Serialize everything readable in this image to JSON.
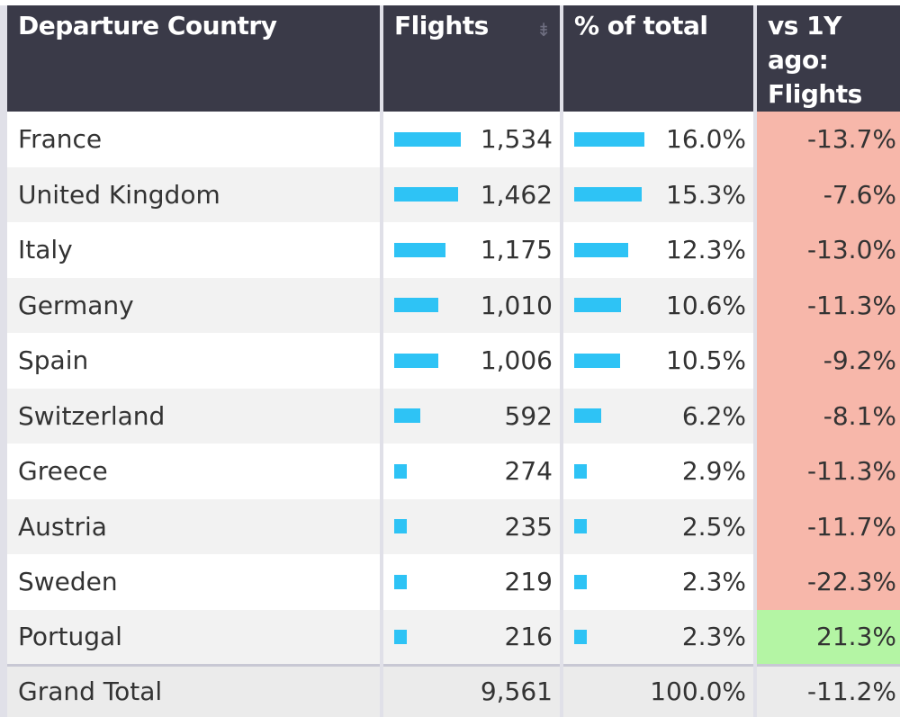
{
  "table": {
    "headers": {
      "country": "Departure Country",
      "flights": "Flights",
      "pct": "% of total",
      "yoy": "vs 1Y ago: Flights"
    },
    "sort_icon": "sort-descending-icon",
    "max_flights": 1534,
    "max_pct": 16.0,
    "colors": {
      "header_bg": "#3a3a48",
      "bar": "#2ec3f5",
      "negative_bg": "#f7b7aa",
      "positive_bg": "#b4f5a4"
    },
    "rows": [
      {
        "country": "France",
        "flights": "1,534",
        "flights_value": 1534,
        "pct": "16.0%",
        "pct_value": 16.0,
        "yoy": "-13.7%",
        "yoy_value": -13.7
      },
      {
        "country": "United Kingdom",
        "flights": "1,462",
        "flights_value": 1462,
        "pct": "15.3%",
        "pct_value": 15.3,
        "yoy": "-7.6%",
        "yoy_value": -7.6
      },
      {
        "country": "Italy",
        "flights": "1,175",
        "flights_value": 1175,
        "pct": "12.3%",
        "pct_value": 12.3,
        "yoy": "-13.0%",
        "yoy_value": -13.0
      },
      {
        "country": "Germany",
        "flights": "1,010",
        "flights_value": 1010,
        "pct": "10.6%",
        "pct_value": 10.6,
        "yoy": "-11.3%",
        "yoy_value": -11.3
      },
      {
        "country": "Spain",
        "flights": "1,006",
        "flights_value": 1006,
        "pct": "10.5%",
        "pct_value": 10.5,
        "yoy": "-9.2%",
        "yoy_value": -9.2
      },
      {
        "country": "Switzerland",
        "flights": "592",
        "flights_value": 592,
        "pct": "6.2%",
        "pct_value": 6.2,
        "yoy": "-8.1%",
        "yoy_value": -8.1
      },
      {
        "country": "Greece",
        "flights": "274",
        "flights_value": 274,
        "pct": "2.9%",
        "pct_value": 2.9,
        "yoy": "-11.3%",
        "yoy_value": -11.3
      },
      {
        "country": "Austria",
        "flights": "235",
        "flights_value": 235,
        "pct": "2.5%",
        "pct_value": 2.5,
        "yoy": "-11.7%",
        "yoy_value": -11.7
      },
      {
        "country": "Sweden",
        "flights": "219",
        "flights_value": 219,
        "pct": "2.3%",
        "pct_value": 2.3,
        "yoy": "-22.3%",
        "yoy_value": -22.3
      },
      {
        "country": "Portugal",
        "flights": "216",
        "flights_value": 216,
        "pct": "2.3%",
        "pct_value": 2.3,
        "yoy": "21.3%",
        "yoy_value": 21.3
      }
    ],
    "total": {
      "label": "Grand Total",
      "flights": "9,561",
      "pct": "100.0%",
      "yoy": "-11.2%"
    }
  }
}
